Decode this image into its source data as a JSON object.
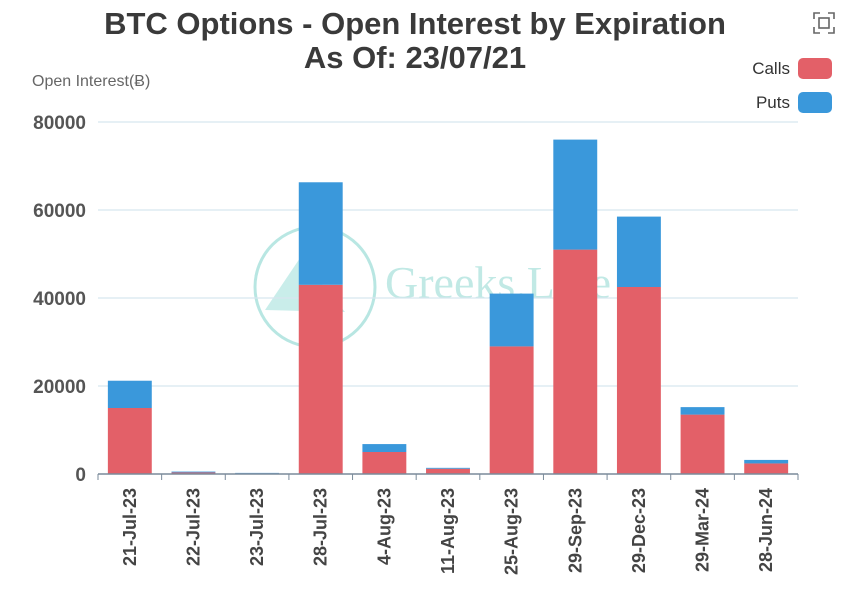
{
  "header": {
    "title_line1": "BTC Options - Open Interest by Expiration",
    "title_line2": "As Of: 23/07/21",
    "y_axis_label": "Open Interest(Ƀ)"
  },
  "watermark": "Greeks.Live",
  "legend": {
    "calls_label": "Calls",
    "puts_label": "Puts"
  },
  "colors": {
    "calls": "#e36068",
    "puts": "#3a98db",
    "grid": "#d7e6ef",
    "axis": "#7a8a9a"
  },
  "chart_data": {
    "type": "bar",
    "stacked": true,
    "title": "BTC Options - Open Interest by Expiration",
    "subtitle": "As Of: 23/07/21",
    "ylabel": "Open Interest(Ƀ)",
    "xlabel": "",
    "ylim": [
      0,
      80000
    ],
    "yticks": [
      0,
      20000,
      40000,
      60000,
      80000
    ],
    "grid": true,
    "legend_position": "top-right",
    "categories": [
      "21-Jul-23",
      "22-Jul-23",
      "23-Jul-23",
      "28-Jul-23",
      "4-Aug-23",
      "11-Aug-23",
      "25-Aug-23",
      "29-Sep-23",
      "29-Dec-23",
      "29-Mar-24",
      "28-Jun-24"
    ],
    "series": [
      {
        "name": "Calls",
        "values": [
          15000,
          350,
          150,
          43000,
          5000,
          1200,
          29000,
          51000,
          42500,
          13500,
          2400
        ]
      },
      {
        "name": "Puts",
        "values": [
          6200,
          200,
          100,
          23300,
          1800,
          200,
          12000,
          25000,
          16000,
          1700,
          800
        ]
      }
    ]
  }
}
